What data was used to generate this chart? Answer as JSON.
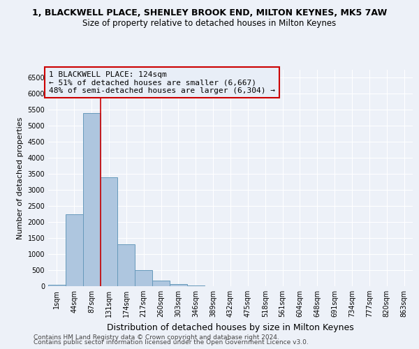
{
  "title": "1, BLACKWELL PLACE, SHENLEY BROOK END, MILTON KEYNES, MK5 7AW",
  "subtitle": "Size of property relative to detached houses in Milton Keynes",
  "xlabel": "Distribution of detached houses by size in Milton Keynes",
  "ylabel": "Number of detached properties",
  "bin_labels": [
    "1sqm",
    "44sqm",
    "87sqm",
    "131sqm",
    "174sqm",
    "217sqm",
    "260sqm",
    "303sqm",
    "346sqm",
    "389sqm",
    "432sqm",
    "475sqm",
    "518sqm",
    "561sqm",
    "604sqm",
    "648sqm",
    "691sqm",
    "734sqm",
    "777sqm",
    "820sqm",
    "863sqm"
  ],
  "bar_heights": [
    50,
    2250,
    5400,
    3400,
    1300,
    490,
    175,
    75,
    25,
    10,
    5,
    3,
    0,
    0,
    0,
    0,
    0,
    0,
    0,
    0,
    0
  ],
  "bar_color": "#aec6df",
  "bar_edgecolor": "#6699bb",
  "vline_x": 2.5,
  "vline_color": "#cc0000",
  "annotation_line1": "1 BLACKWELL PLACE: 124sqm",
  "annotation_line2": "← 51% of detached houses are smaller (6,667)",
  "annotation_line3": "48% of semi-detached houses are larger (6,304) →",
  "annotation_box_edgecolor": "#cc0000",
  "annotation_box_facecolor": "#e8eef7",
  "ylim": [
    0,
    6750
  ],
  "yticks": [
    0,
    500,
    1000,
    1500,
    2000,
    2500,
    3000,
    3500,
    4000,
    4500,
    5000,
    5500,
    6000,
    6500
  ],
  "footer1": "Contains HM Land Registry data © Crown copyright and database right 2024.",
  "footer2": "Contains public sector information licensed under the Open Government Licence v3.0.",
  "background_color": "#edf1f8",
  "grid_color": "#ffffff",
  "title_fontsize": 9,
  "subtitle_fontsize": 8.5,
  "xlabel_fontsize": 9,
  "ylabel_fontsize": 8,
  "tick_fontsize": 7,
  "annotation_fontsize": 8,
  "footer_fontsize": 6.5
}
